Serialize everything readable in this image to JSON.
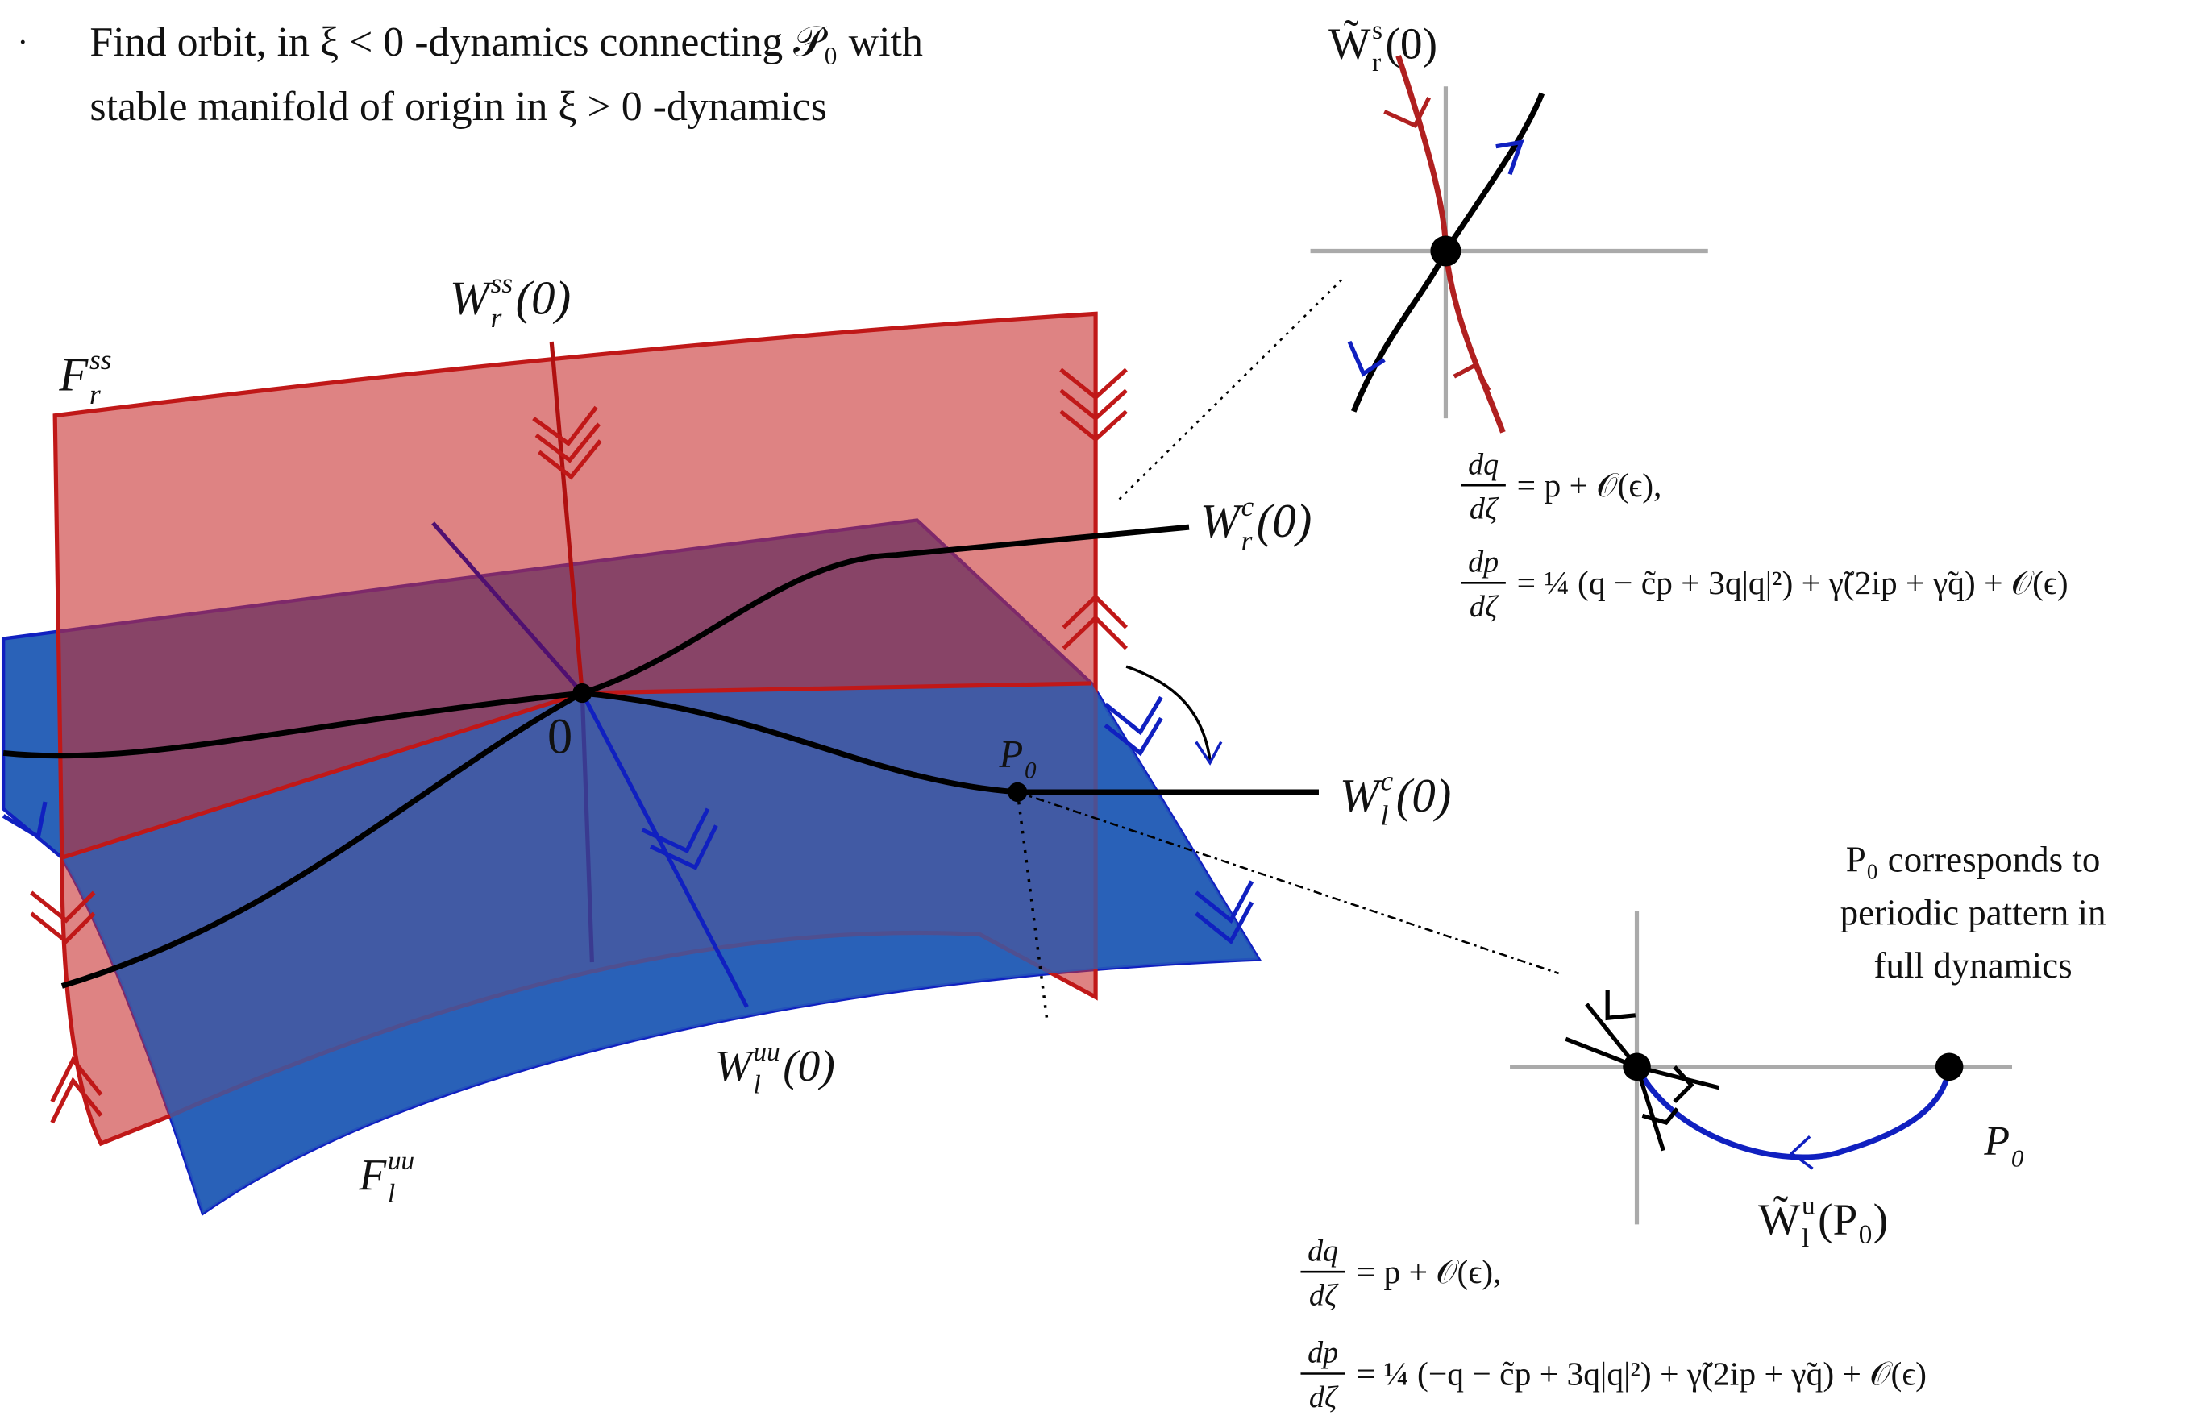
{
  "bullet": {
    "line1": "Find orbit, in ξ < 0 -dynamics connecting 𝒫₀ with",
    "line2": "stable manifold of origin in ξ > 0 -dynamics"
  },
  "labels": [
    {
      "base": "F",
      "sub": "r",
      "sup": "ss"
    },
    {
      "base": "W",
      "sub": "r",
      "sup": "ss",
      "tail": "(0)"
    },
    {
      "base": "W",
      "sub": "r",
      "sup": "c",
      "tail": "(0)"
    },
    {
      "base": "0"
    },
    {
      "base": "P",
      "sub": "0"
    },
    {
      "base": "W",
      "sub": "l",
      "sup": "c",
      "tail": "(0)"
    },
    {
      "base": "W",
      "sub": "l",
      "sup": "uu",
      "tail": "(0)"
    },
    {
      "base": "F",
      "sub": "l",
      "sup": "uu"
    },
    {
      "base": "W̃",
      "sub": "r",
      "sup": "s",
      "tail": "(0)"
    },
    {
      "base": "P",
      "sub": "0"
    },
    {
      "base": "W̃",
      "sub": "l",
      "sup": "u",
      "tail": "(P₀)"
    }
  ],
  "note": [
    "P₀ corresponds to",
    "periodic pattern in",
    "full dynamics"
  ],
  "equations_right": [
    {
      "num": "dq",
      "den": "dζ",
      "rhs": "= p + 𝒪(ϵ),"
    },
    {
      "num": "dp",
      "den": "dζ",
      "rhs": "= ¼ (q − c̃p + 3q|q|²) + γ̃(2ip + γ̃q) + 𝒪(ϵ)"
    }
  ],
  "equations_left": [
    {
      "num": "dq",
      "den": "dζ",
      "rhs": "= p + 𝒪(ϵ),"
    },
    {
      "num": "dp",
      "den": "dζ",
      "rhs": "= ¼ (−q − c̃p + 3q|q|²) + γ̃(2ip + γ̃q) + 𝒪(ϵ)"
    }
  ]
}
